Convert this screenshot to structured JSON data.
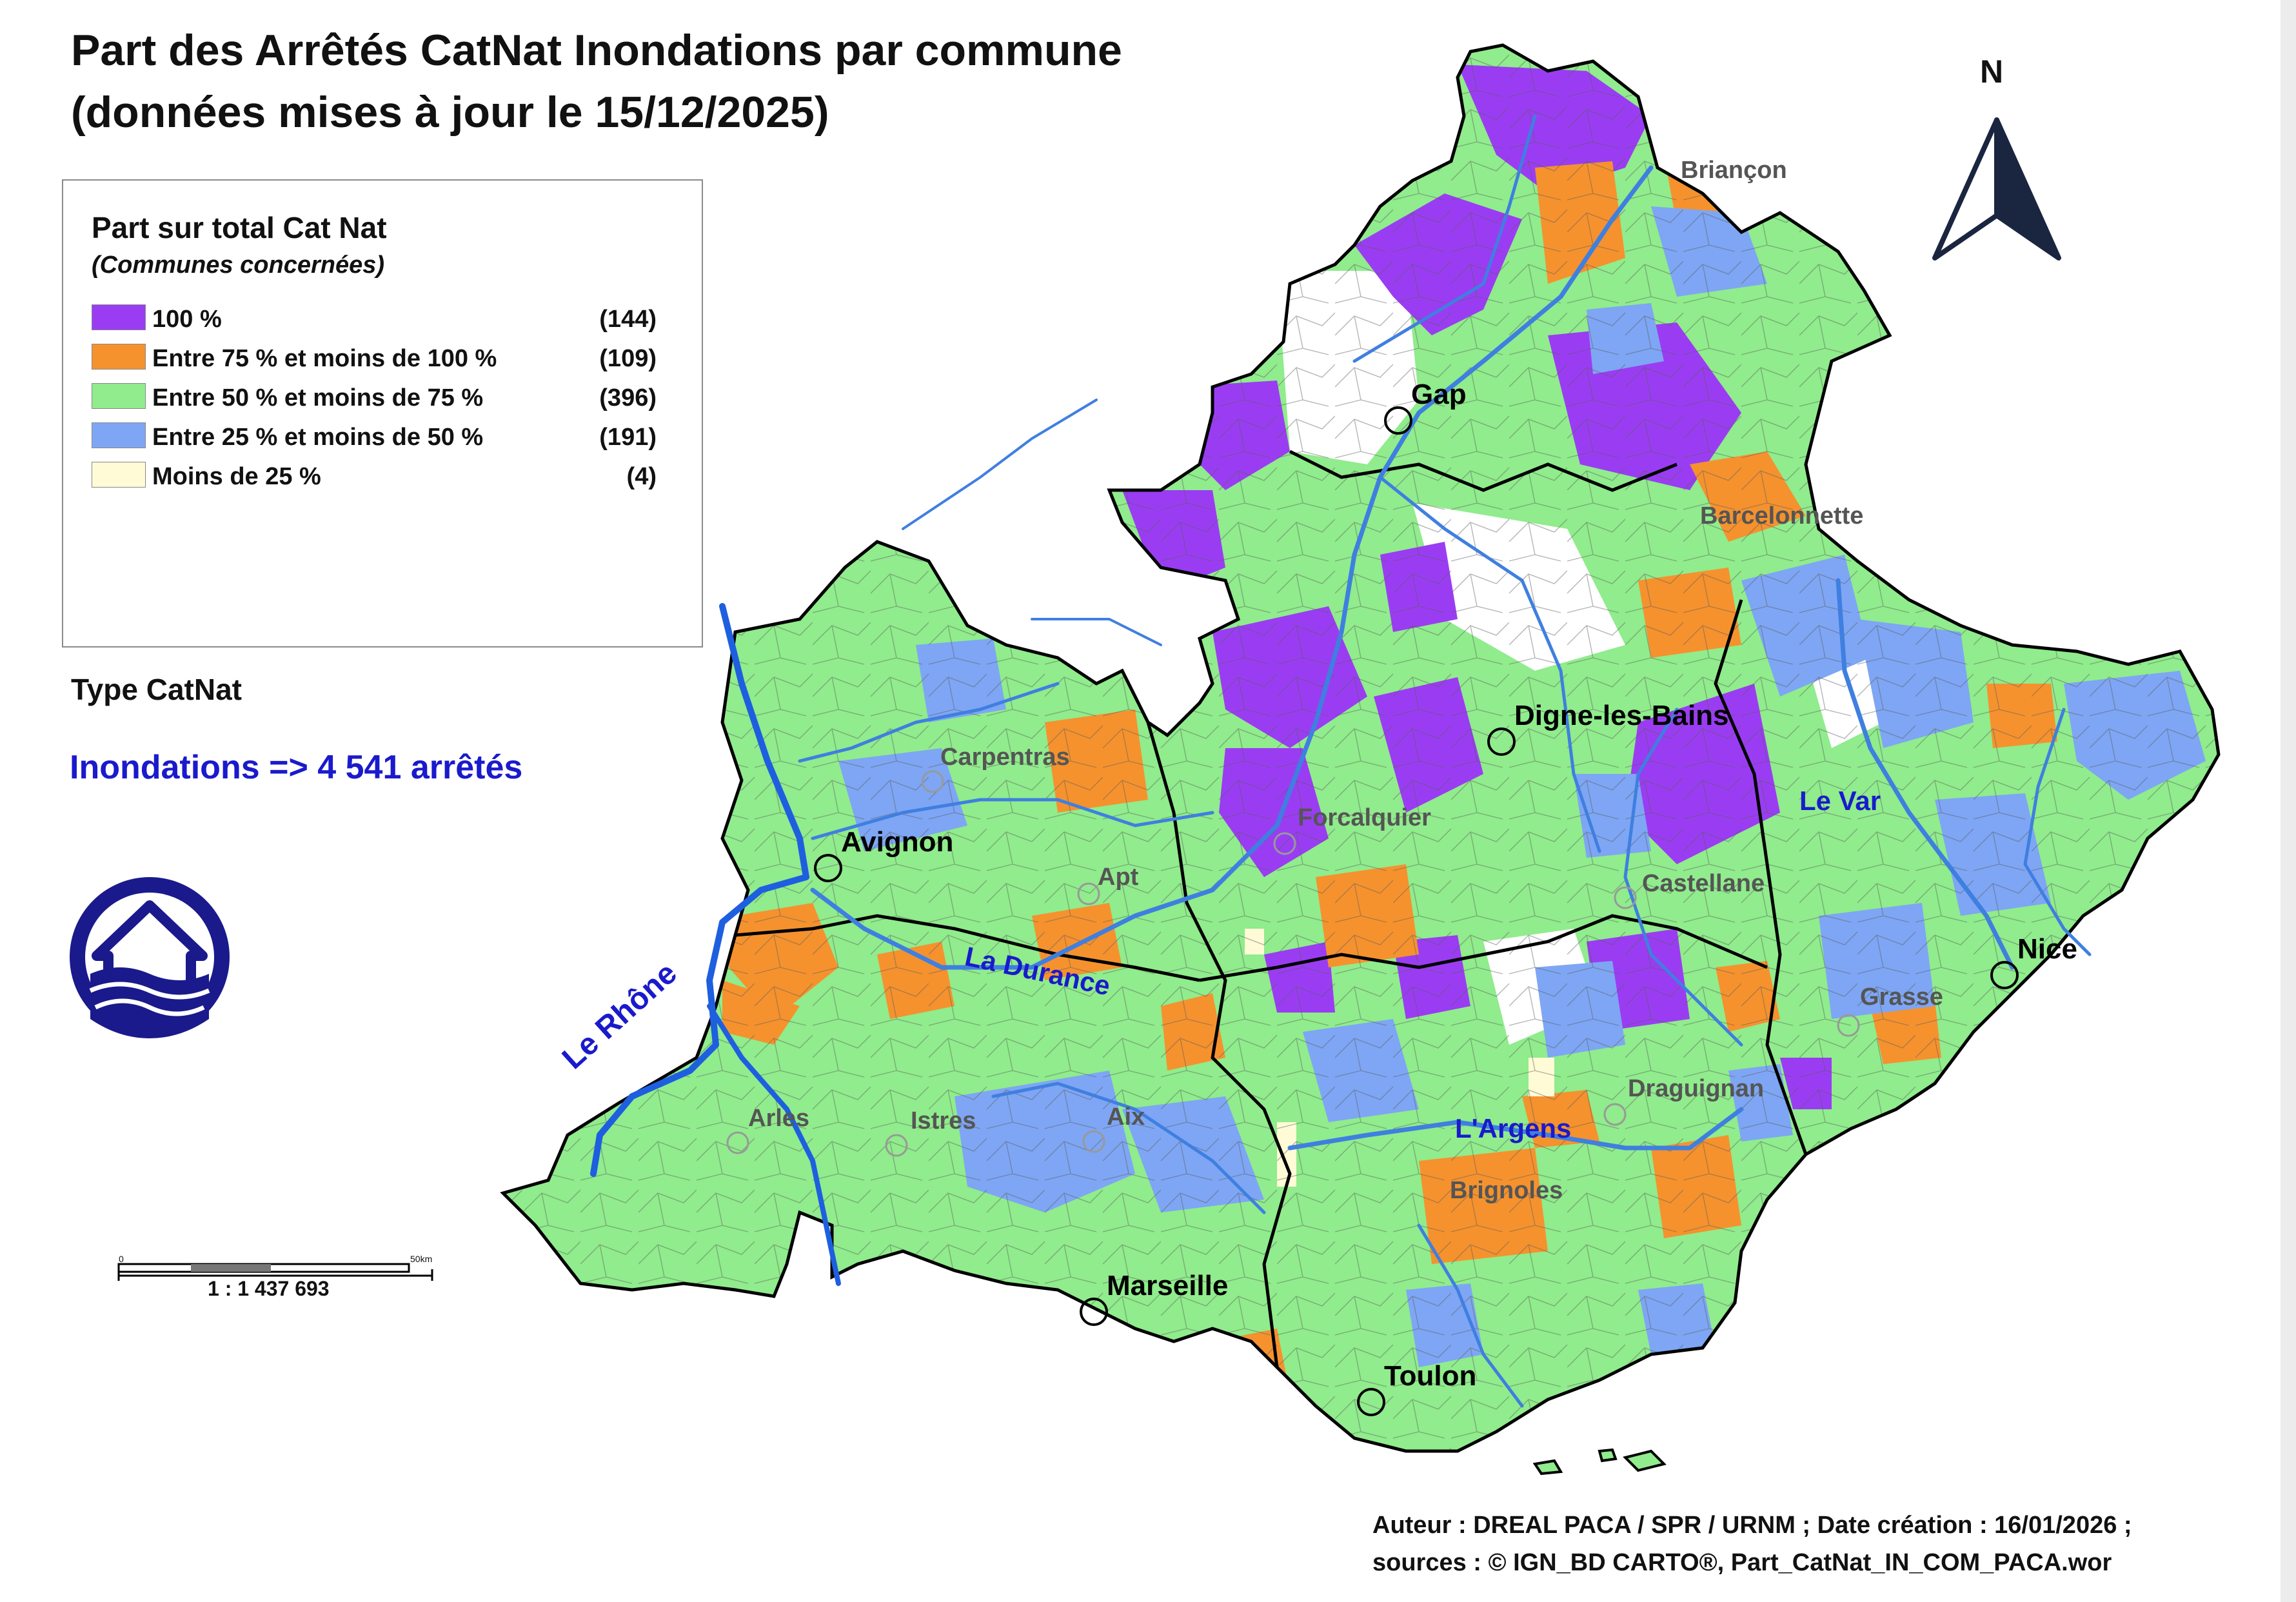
{
  "title": {
    "line1": "Part des Arrêtés CatNat Inondations par commune",
    "line2": "(données mises à jour le 15/12/2025)"
  },
  "legend": {
    "title": "Part sur total Cat Nat",
    "subtitle": "(Communes concernées)",
    "items": [
      {
        "label": "100  %",
        "count": "(144)",
        "color": "#9a3df2"
      },
      {
        "label": "Entre 75 % et moins de 100 %",
        "count": "(109)",
        "color": "#f5922e"
      },
      {
        "label": "Entre 50 % et moins de 75 %",
        "count": "(396)",
        "color": "#90ec8c"
      },
      {
        "label": "Entre 25 % et moins de 50 %",
        "count": "(191)",
        "color": "#7ea6f4"
      },
      {
        "label": "Moins de 25 %",
        "count": "(4)",
        "color": "#fffbd6"
      }
    ]
  },
  "type_catnat": {
    "title": "Type CatNat",
    "value": "Inondations => 4 541 arrêtés"
  },
  "north": {
    "label": "N"
  },
  "scale": {
    "start": "0",
    "end": "50km",
    "ratio": "1 : 1 437 693"
  },
  "cities": {
    "major": [
      "Gap",
      "Digne-les-Bains",
      "Avignon",
      "Nice",
      "Marseille",
      "Toulon"
    ],
    "minor": [
      "Briançon",
      "Barcelonnette",
      "Carpentras",
      "Forcalquier",
      "Apt",
      "Castellane",
      "Grasse",
      "Draguignan",
      "Arles",
      "Istres",
      "Aix",
      "Brignoles"
    ]
  },
  "rivers": [
    "Le Rhône",
    "La Durance",
    "Le Var",
    "L'Argens"
  ],
  "footer": {
    "line1": "Auteur : DREAL PACA / SPR / URNM ; Date création : 16/01/2026  ;",
    "line2": "sources : © IGN_BD CARTO®, Part_CatNat_IN_COM_PACA.wor"
  },
  "colors": {
    "purple": "#9a3df2",
    "orange": "#f5922e",
    "green": "#90ec8c",
    "blue": "#7ea6f4",
    "river": "#3f7fe0",
    "river_label": "#1a1acc",
    "logo": "#1a1a8c"
  }
}
